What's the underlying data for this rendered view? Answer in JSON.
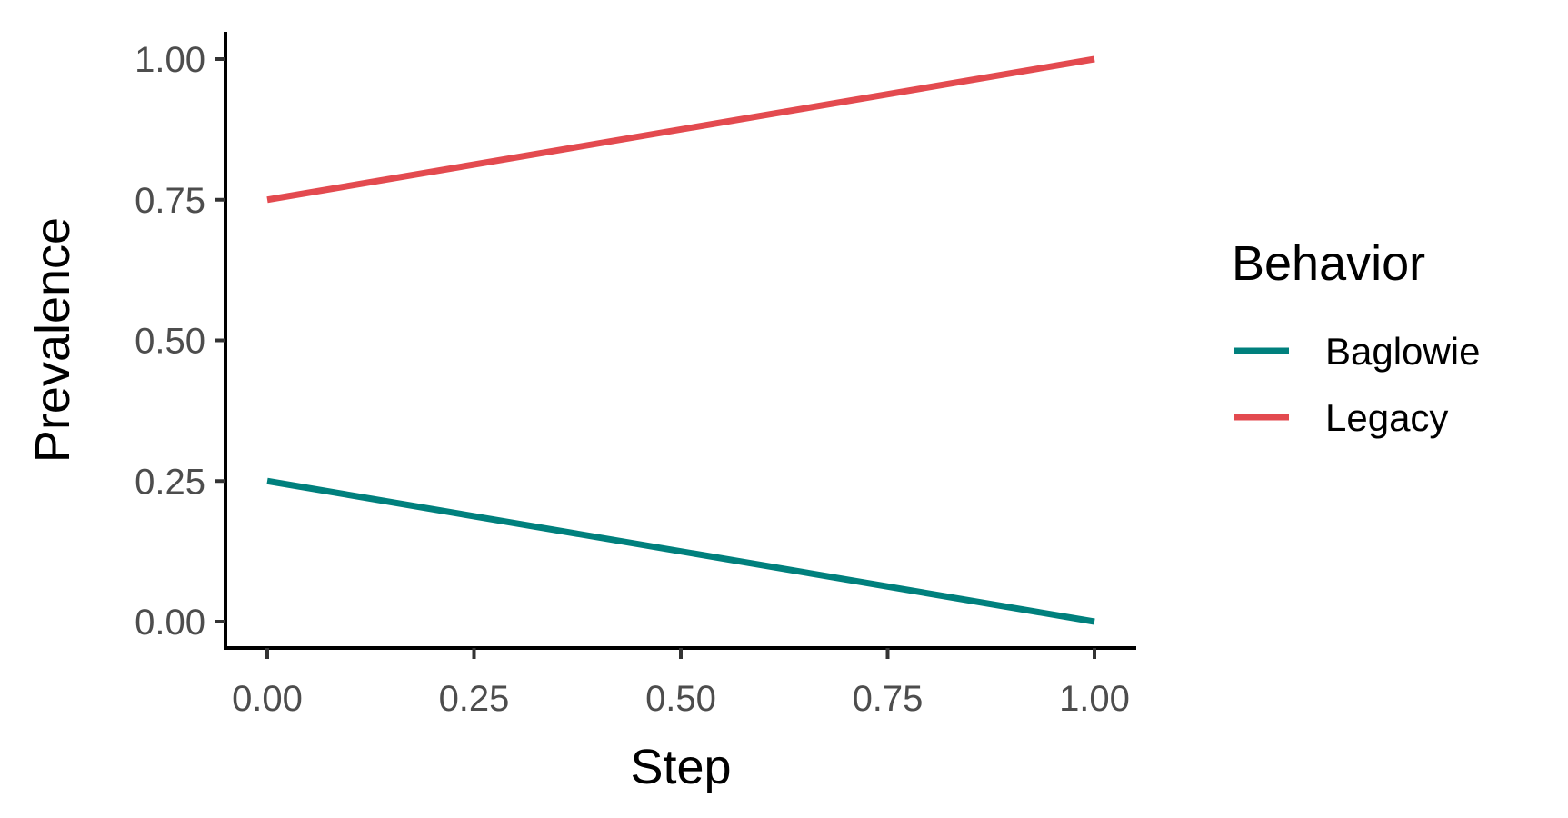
{
  "chart_data": {
    "type": "line",
    "xlabel": "Step",
    "ylabel": "Prevalence",
    "xlim": [
      0,
      1
    ],
    "ylim": [
      0,
      1
    ],
    "x_ticks": [
      "0.00",
      "0.25",
      "0.50",
      "0.75",
      "1.00"
    ],
    "y_ticks": [
      "0.00",
      "0.25",
      "0.50",
      "0.75",
      "1.00"
    ],
    "grid": false,
    "legend": {
      "title": "Behavior",
      "placement": "right"
    },
    "series": [
      {
        "name": "Baglowie",
        "color": "#00807d",
        "x": [
          0,
          1
        ],
        "y": [
          0.25,
          0.0
        ]
      },
      {
        "name": "Legacy",
        "color": "#e34a4f",
        "x": [
          0,
          1
        ],
        "y": [
          0.75,
          1.0
        ]
      }
    ]
  }
}
